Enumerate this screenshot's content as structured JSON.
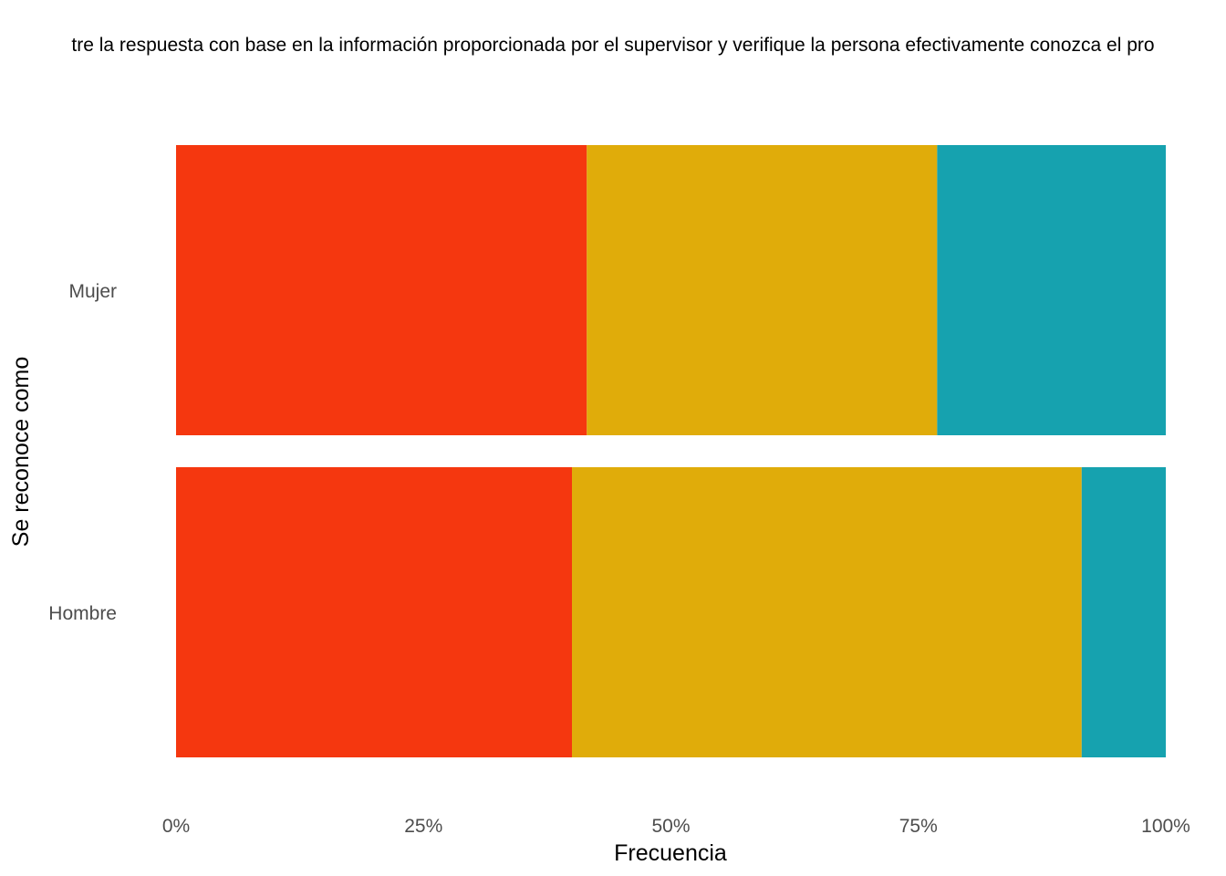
{
  "chart_data": {
    "type": "bar",
    "orientation": "horizontal",
    "stacked": "percent",
    "title": "tre la respuesta con base en la información proporcionada por el supervisor y verifique la persona efectivamente conozca el pro",
    "xlabel": "Frecuencia",
    "ylabel": "Se reconoce como",
    "categories": [
      "Mujer",
      "Hombre"
    ],
    "x_ticks": [
      "0%",
      "25%",
      "50%",
      "75%",
      "100%"
    ],
    "xlim": [
      0,
      1
    ],
    "grid": false,
    "series": [
      {
        "color": "#F5370F",
        "values": [
          0.415,
          0.4
        ]
      },
      {
        "color": "#E0AC0A",
        "values": [
          0.354,
          0.515
        ]
      },
      {
        "color": "#16A2AF",
        "values": [
          0.231,
          0.085
        ]
      }
    ]
  }
}
